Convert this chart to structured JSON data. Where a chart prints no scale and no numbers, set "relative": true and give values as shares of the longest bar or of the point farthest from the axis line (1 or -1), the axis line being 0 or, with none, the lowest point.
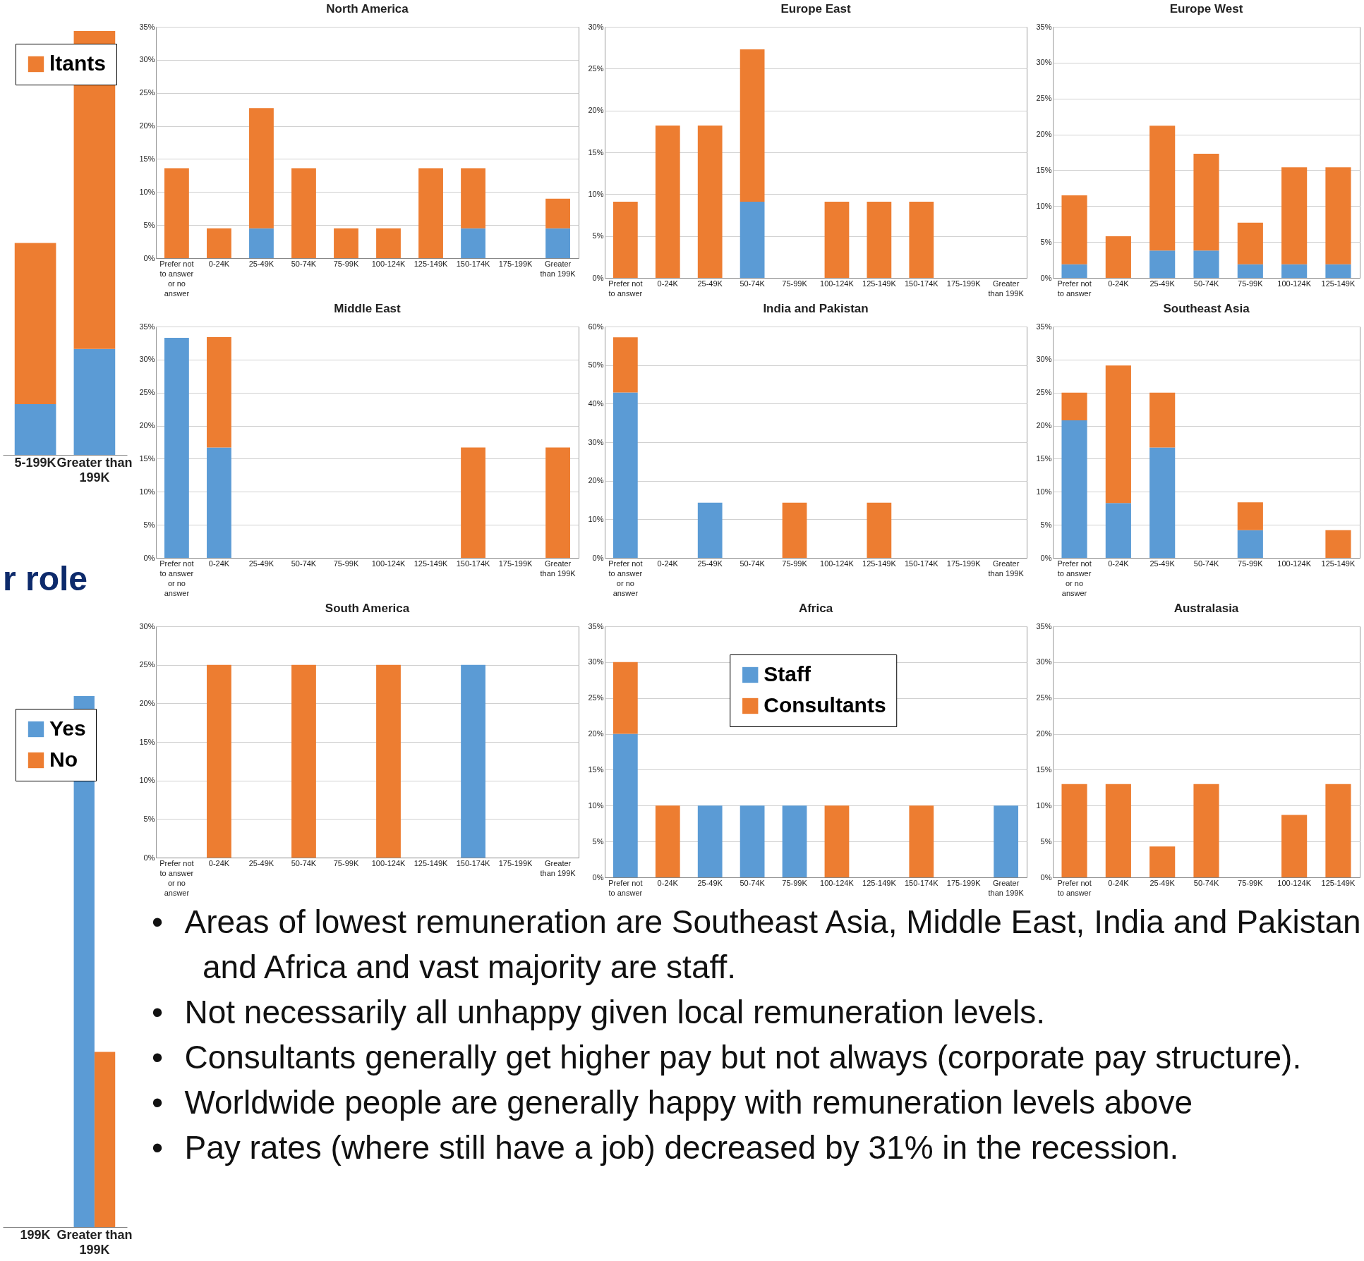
{
  "chart_data": [
    {
      "type": "bar",
      "relative": true,
      "stacked": true,
      "legend": "top left",
      "categories": [
        "5-199K",
        "Greater than 199K"
      ],
      "series": [
        {
          "color": "#5b9bd5",
          "values": [
            0.12,
            0.25
          ]
        },
        {
          "name": "ltants",
          "color": "#ed7d31",
          "values": [
            0.38,
            0.75
          ]
        }
      ]
    },
    {
      "type": "bar",
      "title": "North America",
      "stacked": true,
      "grid": "y",
      "categories": [
        "Prefer not to answer or no answer",
        "0-24K",
        "25-49K",
        "50-74K",
        "75-99K",
        "100-124K",
        "125-149K",
        "150-174K",
        "175-199K",
        "Greater than 199K"
      ],
      "ylim": [
        0,
        35
      ],
      "yticks": [
        {
          "value": 0,
          "label": "0%"
        },
        {
          "value": 5,
          "label": "5%"
        },
        {
          "value": 10,
          "label": "10%"
        },
        {
          "value": 15,
          "label": "15%"
        },
        {
          "value": 20,
          "label": "20%"
        },
        {
          "value": 25,
          "label": "25%"
        },
        {
          "value": 30,
          "label": "30%"
        },
        {
          "value": 35,
          "label": "35%"
        }
      ],
      "series": [
        {
          "color": "#5b9bd5",
          "values": [
            0,
            0,
            4.5,
            0,
            0,
            0,
            0,
            4.5,
            0,
            4.5
          ]
        },
        {
          "color": "#ed7d31",
          "values": [
            13.6,
            4.5,
            18.2,
            13.6,
            4.5,
            4.5,
            13.6,
            9.1,
            0,
            4.5
          ]
        }
      ]
    },
    {
      "type": "bar",
      "title": "Europe East",
      "stacked": true,
      "grid": "y",
      "categories": [
        "Prefer not to answer",
        "0-24K",
        "25-49K",
        "50-74K",
        "75-99K",
        "100-124K",
        "125-149K",
        "150-174K",
        "175-199K",
        "Greater than 199K"
      ],
      "ylim": [
        0,
        30
      ],
      "yticks": [
        {
          "value": 0,
          "label": "0%"
        },
        {
          "value": 5,
          "label": "5%"
        },
        {
          "value": 10,
          "label": "10%"
        },
        {
          "value": 15,
          "label": "15%"
        },
        {
          "value": 20,
          "label": "20%"
        },
        {
          "value": 25,
          "label": "25%"
        },
        {
          "value": 30,
          "label": "30%"
        }
      ],
      "series": [
        {
          "color": "#5b9bd5",
          "values": [
            0,
            0,
            0,
            9.1,
            0,
            0,
            0,
            0,
            0,
            0
          ]
        },
        {
          "color": "#ed7d31",
          "values": [
            9.1,
            18.2,
            18.2,
            18.2,
            0,
            9.1,
            9.1,
            9.1,
            0,
            0
          ]
        }
      ]
    },
    {
      "type": "bar",
      "title": "Europe West",
      "stacked": true,
      "grid": "y",
      "categories": [
        "Prefer not to answer",
        "0-24K",
        "25-49K",
        "50-74K",
        "75-99K",
        "100-124K",
        "125-149K"
      ],
      "ylim": [
        0,
        35
      ],
      "yticks": [
        {
          "value": 0,
          "label": "0%"
        },
        {
          "value": 5,
          "label": "5%"
        },
        {
          "value": 10,
          "label": "10%"
        },
        {
          "value": 15,
          "label": "15%"
        },
        {
          "value": 20,
          "label": "20%"
        },
        {
          "value": 25,
          "label": "25%"
        },
        {
          "value": 30,
          "label": "30%"
        },
        {
          "value": 35,
          "label": "35%"
        }
      ],
      "series": [
        {
          "color": "#5b9bd5",
          "values": [
            1.9,
            0,
            3.8,
            3.8,
            1.9,
            1.9,
            1.9
          ]
        },
        {
          "color": "#ed7d31",
          "values": [
            9.6,
            5.8,
            17.4,
            13.5,
            5.8,
            13.5,
            13.5
          ]
        }
      ]
    },
    {
      "type": "bar",
      "title": "Middle East",
      "stacked": true,
      "grid": "y",
      "categories": [
        "Prefer not to answer or no answer",
        "0-24K",
        "25-49K",
        "50-74K",
        "75-99K",
        "100-124K",
        "125-149K",
        "150-174K",
        "175-199K",
        "Greater than 199K"
      ],
      "ylim": [
        0,
        35
      ],
      "yticks": [
        {
          "value": 0,
          "label": "0%"
        },
        {
          "value": 5,
          "label": "5%"
        },
        {
          "value": 10,
          "label": "10%"
        },
        {
          "value": 15,
          "label": "15%"
        },
        {
          "value": 20,
          "label": "20%"
        },
        {
          "value": 25,
          "label": "25%"
        },
        {
          "value": 30,
          "label": "30%"
        },
        {
          "value": 35,
          "label": "35%"
        }
      ],
      "series": [
        {
          "color": "#5b9bd5",
          "values": [
            33.3,
            16.7,
            0,
            0,
            0,
            0,
            0,
            0,
            0,
            0
          ]
        },
        {
          "color": "#ed7d31",
          "values": [
            0,
            16.7,
            0,
            0,
            0,
            0,
            0,
            16.7,
            0,
            16.7
          ]
        }
      ]
    },
    {
      "type": "bar",
      "title": "India and Pakistan",
      "stacked": true,
      "grid": "y",
      "categories": [
        "Prefer not to answer or no answer",
        "0-24K",
        "25-49K",
        "50-74K",
        "75-99K",
        "100-124K",
        "125-149K",
        "150-174K",
        "175-199K",
        "Greater than 199K"
      ],
      "ylim": [
        0,
        60
      ],
      "yticks": [
        {
          "value": 0,
          "label": "0%"
        },
        {
          "value": 10,
          "label": "10%"
        },
        {
          "value": 20,
          "label": "20%"
        },
        {
          "value": 30,
          "label": "30%"
        },
        {
          "value": 40,
          "label": "40%"
        },
        {
          "value": 50,
          "label": "50%"
        },
        {
          "value": 60,
          "label": "60%"
        }
      ],
      "series": [
        {
          "color": "#5b9bd5",
          "values": [
            42.9,
            0,
            14.3,
            0,
            0,
            0,
            0,
            0,
            0,
            0
          ]
        },
        {
          "color": "#ed7d31",
          "values": [
            14.3,
            0,
            0,
            0,
            14.3,
            0,
            14.3,
            0,
            0,
            0
          ]
        }
      ]
    },
    {
      "type": "bar",
      "title": "Southeast Asia",
      "stacked": true,
      "grid": "y",
      "categories": [
        "Prefer not to answer or no answer",
        "0-24K",
        "25-49K",
        "50-74K",
        "75-99K",
        "100-124K",
        "125-149K"
      ],
      "ylim": [
        0,
        35
      ],
      "yticks": [
        {
          "value": 0,
          "label": "0%"
        },
        {
          "value": 5,
          "label": "5%"
        },
        {
          "value": 10,
          "label": "10%"
        },
        {
          "value": 15,
          "label": "15%"
        },
        {
          "value": 20,
          "label": "20%"
        },
        {
          "value": 25,
          "label": "25%"
        },
        {
          "value": 30,
          "label": "30%"
        },
        {
          "value": 35,
          "label": "35%"
        }
      ],
      "series": [
        {
          "color": "#5b9bd5",
          "values": [
            20.8,
            8.3,
            16.7,
            0,
            4.2,
            0,
            0
          ]
        },
        {
          "color": "#ed7d31",
          "values": [
            4.2,
            20.8,
            8.3,
            0,
            4.2,
            0,
            4.2
          ]
        }
      ]
    },
    {
      "type": "bar",
      "title": "r role",
      "relative": true,
      "legend": "top left",
      "categories": [
        "199K",
        "Greater than 199K"
      ],
      "series": [
        {
          "name": "Yes",
          "color": "#5b9bd5",
          "values": [
            null,
            1
          ]
        },
        {
          "name": "No",
          "color": "#ed7d31",
          "values": [
            null,
            0.33
          ]
        }
      ]
    },
    {
      "type": "bar",
      "title": "South America",
      "stacked": true,
      "grid": "y",
      "categories": [
        "Prefer not to answer or no answer",
        "0-24K",
        "25-49K",
        "50-74K",
        "75-99K",
        "100-124K",
        "125-149K",
        "150-174K",
        "175-199K",
        "Greater than 199K"
      ],
      "ylim": [
        0,
        30
      ],
      "yticks": [
        {
          "value": 0,
          "label": "0%"
        },
        {
          "value": 5,
          "label": "5%"
        },
        {
          "value": 10,
          "label": "10%"
        },
        {
          "value": 15,
          "label": "15%"
        },
        {
          "value": 20,
          "label": "20%"
        },
        {
          "value": 25,
          "label": "25%"
        },
        {
          "value": 30,
          "label": "30%"
        }
      ],
      "series": [
        {
          "color": "#5b9bd5",
          "values": [
            0,
            0,
            0,
            0,
            0,
            0,
            0,
            25,
            0,
            0
          ]
        },
        {
          "color": "#ed7d31",
          "values": [
            0,
            25,
            0,
            25,
            0,
            25,
            0,
            0,
            0,
            0
          ]
        }
      ]
    },
    {
      "type": "bar",
      "title": "Africa",
      "stacked": true,
      "grid": "y",
      "legend": "top",
      "categories": [
        "Prefer not to answer",
        "0-24K",
        "25-49K",
        "50-74K",
        "75-99K",
        "100-124K",
        "125-149K",
        "150-174K",
        "175-199K",
        "Greater than 199K"
      ],
      "ylim": [
        0,
        35
      ],
      "yticks": [
        {
          "value": 0,
          "label": "0%"
        },
        {
          "value": 5,
          "label": "5%"
        },
        {
          "value": 10,
          "label": "10%"
        },
        {
          "value": 15,
          "label": "15%"
        },
        {
          "value": 20,
          "label": "20%"
        },
        {
          "value": 25,
          "label": "25%"
        },
        {
          "value": 30,
          "label": "30%"
        },
        {
          "value": 35,
          "label": "35%"
        }
      ],
      "series": [
        {
          "name": "Staff",
          "color": "#5b9bd5",
          "values": [
            20,
            0,
            10,
            10,
            10,
            0,
            0,
            0,
            0,
            10
          ]
        },
        {
          "name": "Consultants",
          "color": "#ed7d31",
          "values": [
            10,
            10,
            0,
            0,
            0,
            10,
            0,
            10,
            0,
            0
          ]
        }
      ]
    },
    {
      "type": "bar",
      "title": "Australasia",
      "stacked": true,
      "grid": "y",
      "categories": [
        "Prefer not to answer",
        "0-24K",
        "25-49K",
        "50-74K",
        "75-99K",
        "100-124K",
        "125-149K"
      ],
      "ylim": [
        0,
        35
      ],
      "yticks": [
        {
          "value": 0,
          "label": "0%"
        },
        {
          "value": 5,
          "label": "5%"
        },
        {
          "value": 10,
          "label": "10%"
        },
        {
          "value": 15,
          "label": "15%"
        },
        {
          "value": 20,
          "label": "20%"
        },
        {
          "value": 25,
          "label": "25%"
        },
        {
          "value": 30,
          "label": "30%"
        },
        {
          "value": 35,
          "label": "35%"
        }
      ],
      "series": [
        {
          "color": "#5b9bd5",
          "values": [
            0,
            0,
            0,
            0,
            0,
            0,
            0
          ]
        },
        {
          "color": "#ed7d31",
          "values": [
            13,
            13,
            4.3,
            13,
            0,
            8.7,
            13
          ]
        }
      ]
    },
    {
      "type": "other",
      "annotations": [
        "•\tAreas of lowest remuneration are Southeast Asia, Middle East, India and Pakistan and Africa and vast majority are staff.",
        "•\tNot necessarily all unhappy given local remuneration levels.",
        "•\tConsultants generally get higher pay but not always (corporate pay structure).",
        "•\tWorldwide people are generally happy with remuneration levels above",
        "•\tPay rates (where still have a job) decreased by 31% in the recession."
      ]
    }
  ]
}
